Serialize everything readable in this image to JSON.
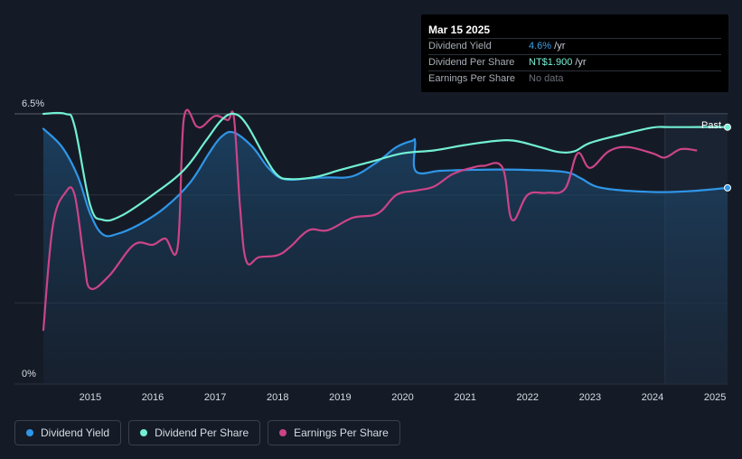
{
  "colors": {
    "background": "#151b26",
    "dividend_yield": "#2f96e8",
    "dividend_per_share": "#72f0d3",
    "earnings_per_share": "#cc4488"
  },
  "tooltip": {
    "date": "Mar 15 2025",
    "rows": [
      {
        "label": "Dividend Yield",
        "value": "4.6%",
        "unit": " /yr",
        "nodata": ""
      },
      {
        "label": "Dividend Per Share",
        "value": "NT$1.900",
        "unit": " /yr",
        "nodata": ""
      },
      {
        "label": "Earnings Per Share",
        "value": "",
        "unit": "",
        "nodata": "No data"
      }
    ]
  },
  "past_label": "Past",
  "legend": [
    {
      "label": "Dividend Yield"
    },
    {
      "label": "Dividend Per Share"
    },
    {
      "label": "Earnings Per Share"
    }
  ],
  "chart_data": {
    "type": "line",
    "ylim": [
      0,
      6.5
    ],
    "xlim": [
      2014.25,
      2025.2
    ],
    "y_tick_labels": [
      "6.5%",
      "0%"
    ],
    "x_tick_labels": [
      "2015",
      "2016",
      "2017",
      "2018",
      "2019",
      "2020",
      "2021",
      "2022",
      "2023",
      "2024",
      "2025"
    ],
    "x_ticks": [
      2015,
      2016,
      2017,
      2018,
      2019,
      2020,
      2021,
      2022,
      2023,
      2024,
      2025
    ],
    "grid": true,
    "forecast_shade_from": 2024.2,
    "series": [
      {
        "name": "Dividend Yield",
        "key": "yield",
        "area": true,
        "points": [
          [
            2014.25,
            6.14
          ],
          [
            2014.55,
            5.7
          ],
          [
            2014.8,
            5.0
          ],
          [
            2015.0,
            4.1
          ],
          [
            2015.2,
            3.6
          ],
          [
            2015.45,
            3.62
          ],
          [
            2015.8,
            3.85
          ],
          [
            2016.2,
            4.25
          ],
          [
            2016.6,
            4.85
          ],
          [
            2016.9,
            5.55
          ],
          [
            2017.1,
            5.95
          ],
          [
            2017.3,
            6.05
          ],
          [
            2017.6,
            5.7
          ],
          [
            2017.85,
            5.2
          ],
          [
            2018.1,
            4.93
          ],
          [
            2018.5,
            4.95
          ],
          [
            2018.8,
            4.97
          ],
          [
            2019.2,
            5.0
          ],
          [
            2019.6,
            5.35
          ],
          [
            2019.9,
            5.7
          ],
          [
            2020.15,
            5.85
          ],
          [
            2020.2,
            5.82
          ],
          [
            2020.21,
            5.12
          ],
          [
            2020.6,
            5.13
          ],
          [
            2021.0,
            5.15
          ],
          [
            2021.5,
            5.16
          ],
          [
            2022.0,
            5.15
          ],
          [
            2022.6,
            5.1
          ],
          [
            2022.85,
            4.95
          ],
          [
            2023.1,
            4.75
          ],
          [
            2023.5,
            4.66
          ],
          [
            2024.0,
            4.62
          ],
          [
            2024.3,
            4.62
          ],
          [
            2024.7,
            4.65
          ],
          [
            2025.2,
            4.72
          ]
        ]
      },
      {
        "name": "Dividend Per Share",
        "key": "dps",
        "area": false,
        "points": [
          [
            2014.25,
            6.5
          ],
          [
            2014.6,
            6.5
          ],
          [
            2014.75,
            6.2
          ],
          [
            2015.0,
            4.3
          ],
          [
            2015.2,
            3.95
          ],
          [
            2015.5,
            4.05
          ],
          [
            2016.0,
            4.55
          ],
          [
            2016.5,
            5.15
          ],
          [
            2016.85,
            5.85
          ],
          [
            2017.1,
            6.35
          ],
          [
            2017.3,
            6.5
          ],
          [
            2017.5,
            6.25
          ],
          [
            2017.8,
            5.45
          ],
          [
            2018.0,
            5.02
          ],
          [
            2018.2,
            4.93
          ],
          [
            2018.6,
            4.98
          ],
          [
            2019.0,
            5.15
          ],
          [
            2019.5,
            5.35
          ],
          [
            2020.0,
            5.55
          ],
          [
            2020.5,
            5.62
          ],
          [
            2021.0,
            5.75
          ],
          [
            2021.5,
            5.85
          ],
          [
            2021.8,
            5.85
          ],
          [
            2022.2,
            5.7
          ],
          [
            2022.5,
            5.58
          ],
          [
            2022.75,
            5.6
          ],
          [
            2023.0,
            5.8
          ],
          [
            2023.5,
            6.0
          ],
          [
            2024.0,
            6.17
          ],
          [
            2024.3,
            6.18
          ],
          [
            2025.2,
            6.18
          ]
        ]
      },
      {
        "name": "Earnings Per Share",
        "key": "eps",
        "area": false,
        "points": [
          [
            2014.25,
            1.3
          ],
          [
            2014.4,
            3.8
          ],
          [
            2014.6,
            4.6
          ],
          [
            2014.75,
            4.55
          ],
          [
            2014.9,
            3.0
          ],
          [
            2015.0,
            2.3
          ],
          [
            2015.3,
            2.6
          ],
          [
            2015.7,
            3.35
          ],
          [
            2016.0,
            3.35
          ],
          [
            2016.2,
            3.5
          ],
          [
            2016.4,
            3.3
          ],
          [
            2016.5,
            6.4
          ],
          [
            2016.7,
            6.2
          ],
          [
            2016.8,
            6.2
          ],
          [
            2017.0,
            6.45
          ],
          [
            2017.2,
            6.35
          ],
          [
            2017.3,
            6.4
          ],
          [
            2017.4,
            4.2
          ],
          [
            2017.5,
            2.95
          ],
          [
            2017.7,
            3.05
          ],
          [
            2018.0,
            3.1
          ],
          [
            2018.2,
            3.3
          ],
          [
            2018.5,
            3.7
          ],
          [
            2018.8,
            3.7
          ],
          [
            2019.2,
            4.0
          ],
          [
            2019.6,
            4.1
          ],
          [
            2019.9,
            4.55
          ],
          [
            2020.2,
            4.65
          ],
          [
            2020.5,
            4.75
          ],
          [
            2020.8,
            5.05
          ],
          [
            2021.1,
            5.2
          ],
          [
            2021.3,
            5.25
          ],
          [
            2021.6,
            5.2
          ],
          [
            2021.75,
            3.95
          ],
          [
            2022.0,
            4.55
          ],
          [
            2022.3,
            4.6
          ],
          [
            2022.6,
            4.7
          ],
          [
            2022.8,
            5.55
          ],
          [
            2023.0,
            5.2
          ],
          [
            2023.3,
            5.6
          ],
          [
            2023.6,
            5.7
          ],
          [
            2024.0,
            5.55
          ],
          [
            2024.2,
            5.45
          ],
          [
            2024.45,
            5.65
          ],
          [
            2024.7,
            5.62
          ]
        ]
      }
    ]
  }
}
